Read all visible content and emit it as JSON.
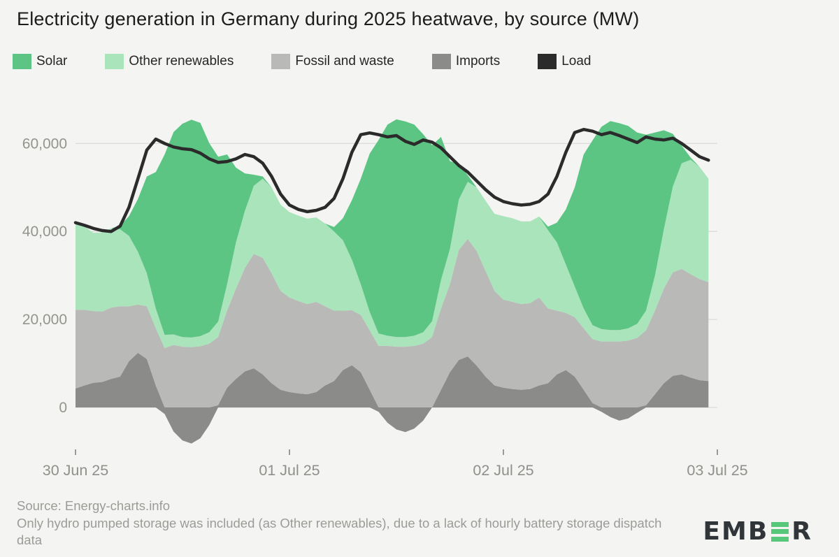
{
  "title": "Electricity generation in Germany during 2025 heatwave, by source (MW)",
  "legend": [
    {
      "label": "Solar",
      "color": "#5cc584"
    },
    {
      "label": "Other renewables",
      "color": "#a9e4bb"
    },
    {
      "label": "Fossil and waste",
      "color": "#b9b9b7"
    },
    {
      "label": "Imports",
      "color": "#8b8b89"
    },
    {
      "label": "Load",
      "color": "#2b2b2b"
    }
  ],
  "footer": {
    "source": "Source: Energy-charts.info",
    "note": "Only hydro pumped storage was included (as Other renewables), due to a lack of hourly battery storage dispatch data"
  },
  "logo_text": "EMBER",
  "colors": {
    "background": "#f4f4f2",
    "gridline": "#dcdcda",
    "axis_text": "#94948e",
    "accent_green": "#57c879"
  },
  "chart_data": {
    "type": "area",
    "title": "Electricity generation in Germany during 2025 heatwave, by source (MW)",
    "unit": "MW",
    "x_start": "30 Jun 25 00:00",
    "x_step_hours": 1,
    "points": 72,
    "grid": "horizontal",
    "legend_position": "top",
    "ylim": [
      -9000,
      66000
    ],
    "x_ticks": [
      {
        "hour": 0,
        "label": "30 Jun 25"
      },
      {
        "hour": 24,
        "label": "01 Jul 25"
      },
      {
        "hour": 48,
        "label": "02 Jul 25"
      },
      {
        "hour": 72,
        "label": "03 Jul 25"
      }
    ],
    "y_ticks": [
      {
        "value": 0,
        "label": "0"
      },
      {
        "value": 20000,
        "label": "20,000"
      },
      {
        "value": 40000,
        "label": "40,000"
      },
      {
        "value": 60000,
        "label": "60,000"
      }
    ],
    "stack_order": [
      "Imports",
      "Fossil and waste",
      "Other renewables",
      "Solar"
    ],
    "series": [
      {
        "name": "Imports",
        "type": "area",
        "color": "#8b8b89",
        "values": [
          4300,
          5000,
          5600,
          5800,
          6500,
          7000,
          10500,
          12400,
          11000,
          5000,
          -1500,
          -5500,
          -7500,
          -8200,
          -7000,
          -4000,
          500,
          4500,
          6500,
          8200,
          8900,
          7500,
          5500,
          4000,
          3500,
          3200,
          3000,
          3500,
          5000,
          6000,
          8500,
          9600,
          8000,
          4000,
          -1000,
          -3500,
          -5000,
          -5600,
          -4800,
          -3000,
          0,
          4000,
          8000,
          10800,
          11600,
          9500,
          7000,
          5000,
          4500,
          4200,
          4000,
          4200,
          5000,
          5500,
          7500,
          8500,
          7000,
          4000,
          1000,
          -1000,
          -2200,
          -3000,
          -2500,
          -1200,
          500,
          3000,
          5500,
          7200,
          7500,
          6800,
          6200,
          6000
        ]
      },
      {
        "name": "Fossil and waste",
        "type": "area",
        "color": "#b9b9b7",
        "values": [
          17900,
          17200,
          16300,
          16000,
          16200,
          16000,
          12500,
          11000,
          12000,
          13000,
          13500,
          14200,
          13800,
          13700,
          13900,
          14500,
          15500,
          17500,
          20500,
          23500,
          26000,
          26500,
          25000,
          22500,
          21500,
          21000,
          20500,
          20500,
          18000,
          16000,
          13500,
          12500,
          13000,
          13500,
          14000,
          14000,
          13800,
          13800,
          14000,
          14500,
          16000,
          18500,
          20000,
          25000,
          26700,
          26000,
          24000,
          21500,
          20000,
          19800,
          19500,
          19500,
          20000,
          17000,
          14500,
          13000,
          13500,
          14000,
          14500,
          15000,
          15000,
          15000,
          15200,
          15800,
          17000,
          19000,
          21500,
          23500,
          24000,
          23500,
          23000,
          22500
        ]
      },
      {
        "name": "Other renewables",
        "type": "area",
        "color": "#a9e4bb",
        "values": [
          19600,
          19000,
          17800,
          18000,
          18000,
          17500,
          16000,
          12000,
          7500,
          4500,
          3000,
          2400,
          2200,
          2200,
          2300,
          2600,
          3500,
          6000,
          10500,
          13000,
          15500,
          18000,
          19500,
          19600,
          19400,
          19400,
          19400,
          19200,
          18800,
          18000,
          16000,
          11500,
          7000,
          4200,
          2800,
          2300,
          2200,
          2200,
          2300,
          2600,
          3600,
          6500,
          8000,
          11500,
          13000,
          14500,
          16000,
          17500,
          19000,
          19000,
          18800,
          18600,
          18400,
          17800,
          15500,
          11000,
          7000,
          4500,
          3200,
          2800,
          2600,
          2600,
          2800,
          3200,
          4500,
          8000,
          13500,
          19500,
          24000,
          26000,
          25500,
          23500
        ]
      },
      {
        "name": "Solar",
        "type": "area",
        "color": "#5cc584",
        "values": [
          0,
          0,
          0,
          0,
          0,
          800,
          4500,
          12000,
          22000,
          31000,
          41000,
          46000,
          48500,
          49500,
          48500,
          43000,
          37500,
          29500,
          17000,
          8500,
          2500,
          500,
          0,
          0,
          0,
          0,
          0,
          0,
          0,
          1000,
          5000,
          13500,
          24000,
          36000,
          44000,
          48000,
          49500,
          49000,
          48000,
          45000,
          40000,
          32500,
          20000,
          8000,
          1500,
          0,
          0,
          0,
          0,
          0,
          0,
          0,
          0,
          800,
          4500,
          12500,
          22500,
          35000,
          42000,
          46000,
          47500,
          47000,
          46000,
          43500,
          40000,
          32500,
          22500,
          12000,
          4000,
          500,
          0,
          0
        ]
      },
      {
        "name": "Load",
        "type": "line",
        "color": "#2b2b2b",
        "values": [
          42000,
          41400,
          40700,
          40200,
          40000,
          41200,
          45500,
          52000,
          58500,
          61000,
          60000,
          59200,
          58800,
          58600,
          57800,
          56500,
          55700,
          55900,
          56500,
          57500,
          57000,
          55500,
          52500,
          48500,
          46000,
          45000,
          44500,
          44800,
          45500,
          47500,
          52000,
          58000,
          62000,
          62400,
          62000,
          61500,
          61800,
          60500,
          59800,
          60800,
          60300,
          59000,
          57000,
          55000,
          53500,
          51500,
          49500,
          47800,
          46800,
          46300,
          46000,
          46200,
          46800,
          48500,
          52500,
          58000,
          62500,
          63200,
          62800,
          62000,
          62500,
          61800,
          61000,
          60200,
          61500,
          61000,
          60800,
          61200,
          60000,
          58500,
          57000,
          56200
        ]
      }
    ]
  }
}
